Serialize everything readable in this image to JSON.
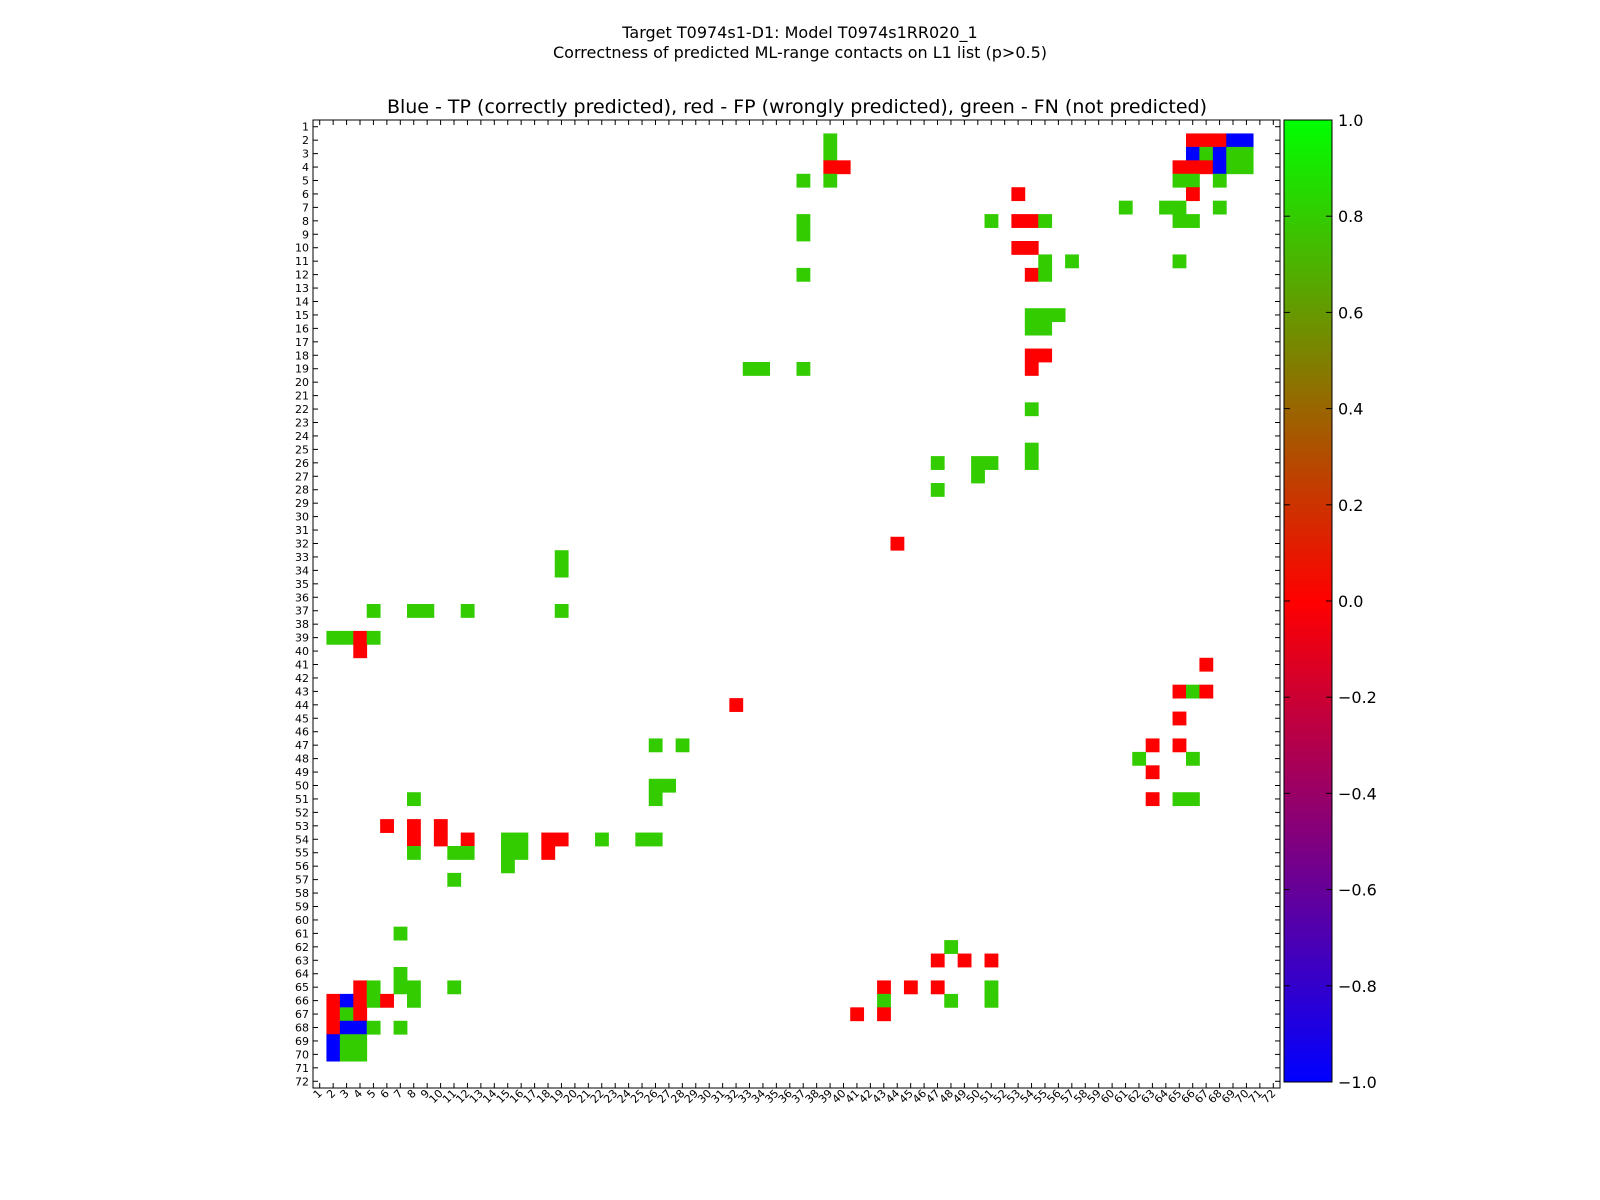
{
  "chart_data": {
    "type": "heatmap",
    "suptitle": "Target T0974s1-D1: Model T0974s1RR020_1",
    "subtitle": "Correctness of predicted ML-range contacts on L1 list (p>0.5)",
    "title": "Blue - TP (correctly predicted), red - FP (wrongly predicted), green - FN (not predicted)",
    "n": 72,
    "x_ticks": [
      "1",
      "2",
      "3",
      "4",
      "5",
      "6",
      "7",
      "8",
      "9",
      "10",
      "11",
      "12",
      "13",
      "14",
      "15",
      "16",
      "17",
      "18",
      "19",
      "20",
      "21",
      "22",
      "23",
      "24",
      "25",
      "26",
      "27",
      "28",
      "29",
      "30",
      "31",
      "32",
      "33",
      "34",
      "35",
      "36",
      "37",
      "38",
      "39",
      "40",
      "41",
      "42",
      "43",
      "44",
      "45",
      "46",
      "47",
      "48",
      "49",
      "50",
      "51",
      "52",
      "53",
      "54",
      "55",
      "56",
      "57",
      "58",
      "59",
      "60",
      "61",
      "62",
      "63",
      "64",
      "65",
      "66",
      "67",
      "68",
      "69",
      "70",
      "71",
      "72"
    ],
    "y_ticks": [
      "1",
      "2",
      "3",
      "4",
      "5",
      "6",
      "7",
      "8",
      "9",
      "10",
      "11",
      "12",
      "13",
      "14",
      "15",
      "16",
      "17",
      "18",
      "19",
      "20",
      "21",
      "22",
      "23",
      "24",
      "25",
      "26",
      "27",
      "28",
      "29",
      "30",
      "31",
      "32",
      "33",
      "34",
      "35",
      "36",
      "37",
      "38",
      "39",
      "40",
      "41",
      "42",
      "43",
      "44",
      "45",
      "46",
      "47",
      "48",
      "49",
      "50",
      "51",
      "52",
      "53",
      "54",
      "55",
      "56",
      "57",
      "58",
      "59",
      "60",
      "61",
      "62",
      "63",
      "64",
      "65",
      "66",
      "67",
      "68",
      "69",
      "70",
      "71",
      "72"
    ],
    "colorbar": {
      "range": [
        -1.0,
        1.0
      ],
      "ticks": [
        "1.0",
        "0.8",
        "0.6",
        "0.4",
        "0.2",
        "0.0",
        "−0.2",
        "−0.4",
        "−0.6",
        "−0.8",
        "−1.0"
      ],
      "tick_values": [
        1.0,
        0.8,
        0.6,
        0.4,
        0.2,
        0.0,
        -0.2,
        -0.4,
        -0.6,
        -0.8,
        -1.0
      ],
      "gradient": [
        "#0000ff",
        "#ff0000",
        "#00ff00"
      ]
    },
    "legend": {
      "TP": "#0000ff",
      "FP": "#ff0000",
      "FN": "#33cc00"
    },
    "cells": [
      [
        2,
        66,
        "FP"
      ],
      [
        2,
        67,
        "FP"
      ],
      [
        2,
        68,
        "FP"
      ],
      [
        2,
        69,
        "TP"
      ],
      [
        2,
        70,
        "TP"
      ],
      [
        3,
        66,
        "TP"
      ],
      [
        3,
        67,
        "FN"
      ],
      [
        3,
        68,
        "TP"
      ],
      [
        3,
        69,
        "FN"
      ],
      [
        3,
        70,
        "FN"
      ],
      [
        4,
        65,
        "FP"
      ],
      [
        4,
        66,
        "FP"
      ],
      [
        4,
        67,
        "FP"
      ],
      [
        4,
        68,
        "TP"
      ],
      [
        4,
        69,
        "FN"
      ],
      [
        4,
        70,
        "FN"
      ],
      [
        5,
        65,
        "FN"
      ],
      [
        5,
        66,
        "FN"
      ],
      [
        5,
        68,
        "FN"
      ],
      [
        6,
        66,
        "FP"
      ],
      [
        7,
        61,
        "FN"
      ],
      [
        7,
        64,
        "FN"
      ],
      [
        7,
        65,
        "FN"
      ],
      [
        7,
        68,
        "FN"
      ],
      [
        8,
        65,
        "FN"
      ],
      [
        8,
        66,
        "FN"
      ],
      [
        11,
        65,
        "FN"
      ],
      [
        2,
        39,
        "FN"
      ],
      [
        3,
        39,
        "FN"
      ],
      [
        4,
        39,
        "FP"
      ],
      [
        4,
        40,
        "FP"
      ],
      [
        5,
        39,
        "FN"
      ],
      [
        5,
        37,
        "FN"
      ],
      [
        8,
        37,
        "FN"
      ],
      [
        9,
        37,
        "FN"
      ],
      [
        12,
        37,
        "FN"
      ],
      [
        19,
        37,
        "FN"
      ],
      [
        19,
        33,
        "FN"
      ],
      [
        19,
        34,
        "FN"
      ],
      [
        6,
        53,
        "FP"
      ],
      [
        8,
        51,
        "FN"
      ],
      [
        8,
        53,
        "FP"
      ],
      [
        8,
        54,
        "FP"
      ],
      [
        8,
        55,
        "FN"
      ],
      [
        10,
        53,
        "FP"
      ],
      [
        10,
        54,
        "FP"
      ],
      [
        11,
        55,
        "FN"
      ],
      [
        11,
        57,
        "FN"
      ],
      [
        12,
        54,
        "FP"
      ],
      [
        12,
        55,
        "FN"
      ],
      [
        15,
        54,
        "FN"
      ],
      [
        15,
        55,
        "FN"
      ],
      [
        15,
        56,
        "FN"
      ],
      [
        16,
        54,
        "FN"
      ],
      [
        16,
        55,
        "FN"
      ],
      [
        18,
        54,
        "FP"
      ],
      [
        18,
        55,
        "FP"
      ],
      [
        19,
        54,
        "FP"
      ],
      [
        22,
        54,
        "FN"
      ],
      [
        25,
        54,
        "FN"
      ],
      [
        26,
        54,
        "FN"
      ],
      [
        26,
        47,
        "FN"
      ],
      [
        26,
        50,
        "FN"
      ],
      [
        26,
        51,
        "FN"
      ],
      [
        27,
        50,
        "FN"
      ],
      [
        28,
        47,
        "FN"
      ],
      [
        32,
        44,
        "FP"
      ],
      [
        33,
        19,
        "FN"
      ],
      [
        34,
        19,
        "FN"
      ],
      [
        37,
        19,
        "FN"
      ],
      [
        37,
        5,
        "FN"
      ],
      [
        37,
        8,
        "FN"
      ],
      [
        37,
        9,
        "FN"
      ],
      [
        37,
        12,
        "FN"
      ],
      [
        39,
        2,
        "FN"
      ],
      [
        39,
        3,
        "FN"
      ],
      [
        39,
        4,
        "FP"
      ],
      [
        39,
        5,
        "FN"
      ],
      [
        40,
        4,
        "FP"
      ],
      [
        41,
        67,
        "FP"
      ],
      [
        43,
        65,
        "FP"
      ],
      [
        43,
        66,
        "FN"
      ],
      [
        43,
        67,
        "FP"
      ],
      [
        45,
        65,
        "FP"
      ],
      [
        47,
        63,
        "FP"
      ],
      [
        47,
        65,
        "FP"
      ],
      [
        48,
        62,
        "FN"
      ],
      [
        48,
        66,
        "FN"
      ],
      [
        49,
        63,
        "FP"
      ],
      [
        51,
        63,
        "FP"
      ],
      [
        51,
        65,
        "FN"
      ],
      [
        51,
        66,
        "FN"
      ],
      [
        44,
        32,
        "FP"
      ],
      [
        47,
        26,
        "FN"
      ],
      [
        47,
        28,
        "FN"
      ],
      [
        50,
        26,
        "FN"
      ],
      [
        50,
        27,
        "FN"
      ],
      [
        51,
        26,
        "FN"
      ],
      [
        51,
        8,
        "FN"
      ],
      [
        53,
        6,
        "FP"
      ],
      [
        53,
        8,
        "FP"
      ],
      [
        53,
        10,
        "FP"
      ],
      [
        54,
        8,
        "FP"
      ],
      [
        54,
        10,
        "FP"
      ],
      [
        54,
        12,
        "FP"
      ],
      [
        54,
        15,
        "FN"
      ],
      [
        54,
        16,
        "FN"
      ],
      [
        54,
        18,
        "FP"
      ],
      [
        54,
        19,
        "FP"
      ],
      [
        54,
        22,
        "FN"
      ],
      [
        54,
        25,
        "FN"
      ],
      [
        54,
        26,
        "FN"
      ],
      [
        55,
        8,
        "FN"
      ],
      [
        55,
        11,
        "FN"
      ],
      [
        55,
        12,
        "FN"
      ],
      [
        55,
        15,
        "FN"
      ],
      [
        55,
        16,
        "FN"
      ],
      [
        55,
        18,
        "FP"
      ],
      [
        56,
        15,
        "FN"
      ],
      [
        57,
        11,
        "FN"
      ],
      [
        61,
        7,
        "FN"
      ],
      [
        62,
        48,
        "FN"
      ],
      [
        63,
        47,
        "FP"
      ],
      [
        63,
        49,
        "FP"
      ],
      [
        63,
        51,
        "FP"
      ],
      [
        64,
        7,
        "FN"
      ],
      [
        65,
        4,
        "FP"
      ],
      [
        65,
        5,
        "FN"
      ],
      [
        65,
        7,
        "FN"
      ],
      [
        65,
        8,
        "FN"
      ],
      [
        65,
        11,
        "FN"
      ],
      [
        65,
        43,
        "FP"
      ],
      [
        65,
        45,
        "FP"
      ],
      [
        65,
        47,
        "FP"
      ],
      [
        65,
        51,
        "FN"
      ],
      [
        66,
        2,
        "FP"
      ],
      [
        66,
        3,
        "TP"
      ],
      [
        66,
        4,
        "FP"
      ],
      [
        66,
        5,
        "FN"
      ],
      [
        66,
        6,
        "FP"
      ],
      [
        66,
        8,
        "FN"
      ],
      [
        66,
        43,
        "FN"
      ],
      [
        66,
        48,
        "FN"
      ],
      [
        66,
        51,
        "FN"
      ],
      [
        67,
        2,
        "FP"
      ],
      [
        67,
        3,
        "FN"
      ],
      [
        67,
        4,
        "FP"
      ],
      [
        67,
        41,
        "FP"
      ],
      [
        67,
        43,
        "FP"
      ],
      [
        68,
        2,
        "FP"
      ],
      [
        68,
        3,
        "TP"
      ],
      [
        68,
        4,
        "TP"
      ],
      [
        68,
        5,
        "FN"
      ],
      [
        68,
        7,
        "FN"
      ],
      [
        69,
        2,
        "TP"
      ],
      [
        69,
        3,
        "FN"
      ],
      [
        69,
        4,
        "FN"
      ],
      [
        70,
        2,
        "TP"
      ],
      [
        70,
        3,
        "FN"
      ],
      [
        70,
        4,
        "FN"
      ]
    ]
  }
}
